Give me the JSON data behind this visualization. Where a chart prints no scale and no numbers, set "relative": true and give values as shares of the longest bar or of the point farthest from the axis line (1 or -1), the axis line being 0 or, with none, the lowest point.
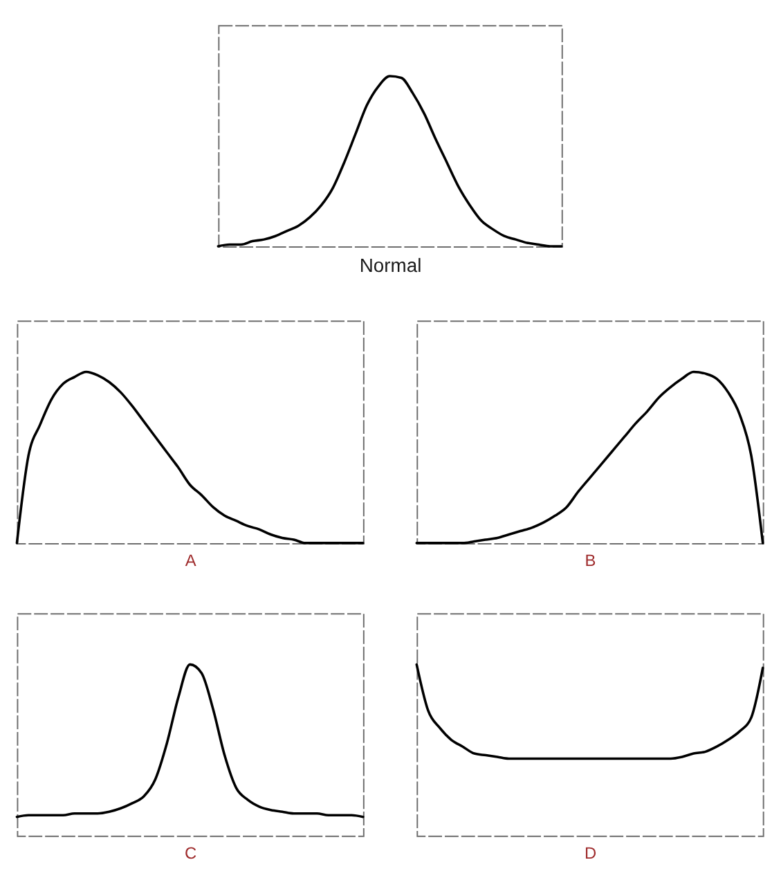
{
  "chart_data": [
    {
      "type": "line",
      "relative": true,
      "xlabel": "Normal",
      "categories": [
        null,
        null,
        null,
        null,
        null,
        null,
        null,
        null,
        null,
        null,
        null,
        null,
        null,
        null,
        null,
        null,
        null,
        null,
        null,
        null,
        null,
        null,
        null,
        null,
        null,
        null,
        null,
        null,
        null,
        null,
        null
      ],
      "series": [
        {
          "color": "#000000",
          "values": [
            0.0,
            0.01,
            0.01,
            0.03,
            0.04,
            0.06,
            0.09,
            0.12,
            0.17,
            0.24,
            0.34,
            0.49,
            0.66,
            0.83,
            0.94,
            1.0,
            0.99,
            0.9,
            0.78,
            0.63,
            0.49,
            0.35,
            0.24,
            0.15,
            0.1,
            0.06,
            0.04,
            0.02,
            0.01,
            0.0,
            0.0
          ]
        }
      ]
    },
    {
      "type": "line",
      "relative": true,
      "xlabel": "A",
      "categories": [
        null,
        null,
        null,
        null,
        null,
        null,
        null,
        null,
        null,
        null,
        null,
        null,
        null,
        null,
        null,
        null,
        null,
        null,
        null,
        null,
        null,
        null,
        null,
        null,
        null,
        null,
        null,
        null,
        null,
        null,
        null
      ],
      "series": [
        {
          "color": "#000000",
          "values": [
            0.0,
            0.51,
            0.69,
            0.84,
            0.93,
            0.97,
            1.0,
            0.98,
            0.94,
            0.88,
            0.8,
            0.71,
            0.62,
            0.53,
            0.44,
            0.34,
            0.28,
            0.21,
            0.16,
            0.13,
            0.1,
            0.08,
            0.05,
            0.03,
            0.02,
            0.0,
            0.0,
            0.0,
            0.0,
            0.0,
            0.0
          ]
        }
      ]
    },
    {
      "type": "line",
      "relative": true,
      "xlabel": "B",
      "categories": [
        null,
        null,
        null,
        null,
        null,
        null,
        null,
        null,
        null,
        null,
        null,
        null,
        null,
        null,
        null,
        null,
        null,
        null,
        null,
        null,
        null,
        null,
        null,
        null,
        null,
        null,
        null,
        null,
        null,
        null,
        null
      ],
      "series": [
        {
          "color": "#000000",
          "values": [
            0.0,
            0.0,
            0.0,
            0.0,
            0.0,
            0.01,
            0.02,
            0.03,
            0.05,
            0.07,
            0.09,
            0.12,
            0.16,
            0.21,
            0.3,
            0.38,
            0.46,
            0.54,
            0.62,
            0.7,
            0.77,
            0.85,
            0.91,
            0.96,
            1.0,
            0.99,
            0.96,
            0.88,
            0.75,
            0.51,
            0.0
          ]
        }
      ]
    },
    {
      "type": "line",
      "relative": true,
      "xlabel": "C",
      "categories": [
        null,
        null,
        null,
        null,
        null,
        null,
        null,
        null,
        null,
        null,
        null,
        null,
        null,
        null,
        null,
        null,
        null,
        null,
        null,
        null,
        null,
        null,
        null,
        null,
        null,
        null,
        null,
        null,
        null,
        null,
        null
      ],
      "series": [
        {
          "color": "#000000",
          "values": [
            0.11,
            0.12,
            0.12,
            0.12,
            0.12,
            0.13,
            0.13,
            0.13,
            0.14,
            0.16,
            0.19,
            0.23,
            0.33,
            0.54,
            0.81,
            1.0,
            0.95,
            0.74,
            0.47,
            0.28,
            0.21,
            0.17,
            0.15,
            0.14,
            0.13,
            0.13,
            0.13,
            0.12,
            0.12,
            0.12,
            0.11
          ]
        }
      ]
    },
    {
      "type": "line",
      "relative": true,
      "xlabel": "D",
      "categories": [
        null,
        null,
        null,
        null,
        null,
        null,
        null,
        null,
        null,
        null,
        null,
        null,
        null,
        null,
        null,
        null,
        null,
        null,
        null,
        null,
        null,
        null,
        null,
        null,
        null,
        null,
        null,
        null,
        null,
        null,
        null
      ],
      "series": [
        {
          "color": "#000000",
          "values": [
            1.0,
            0.73,
            0.63,
            0.56,
            0.52,
            0.48,
            0.47,
            0.46,
            0.45,
            0.45,
            0.45,
            0.45,
            0.45,
            0.45,
            0.45,
            0.45,
            0.45,
            0.45,
            0.45,
            0.45,
            0.45,
            0.45,
            0.45,
            0.46,
            0.48,
            0.49,
            0.52,
            0.56,
            0.61,
            0.69,
            0.98
          ]
        }
      ]
    }
  ]
}
